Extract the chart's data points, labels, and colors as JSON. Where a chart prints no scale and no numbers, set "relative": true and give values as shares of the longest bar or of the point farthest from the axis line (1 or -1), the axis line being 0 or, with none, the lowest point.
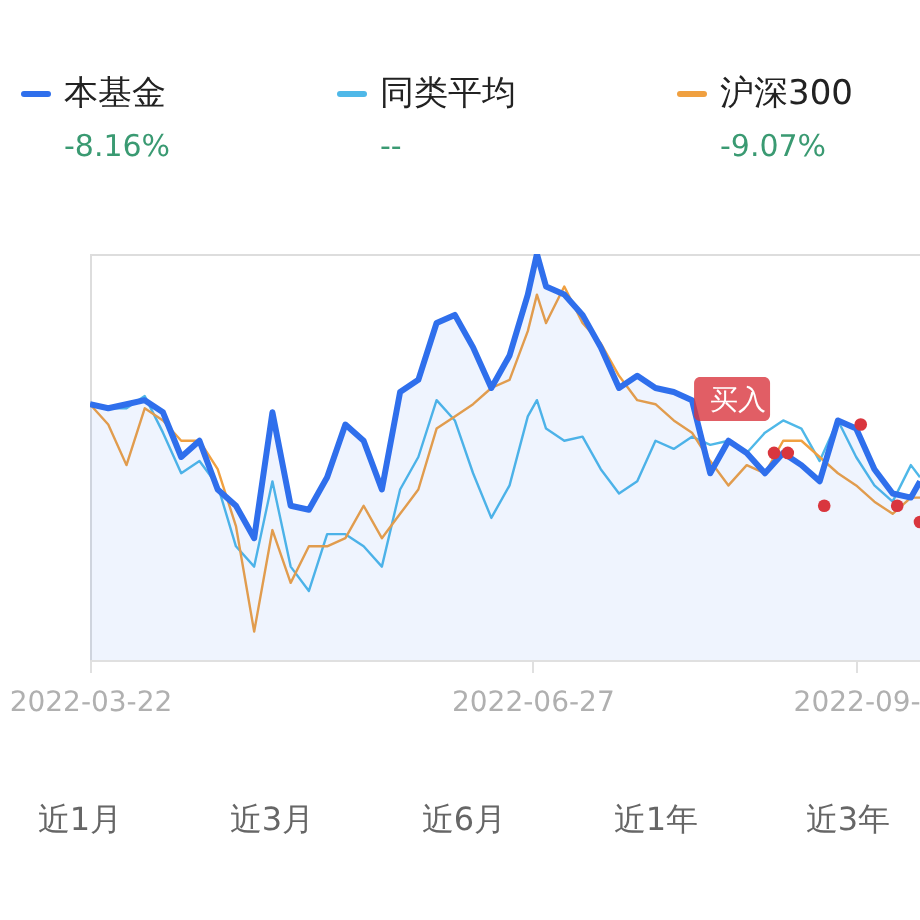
{
  "chart_data": {
    "type": "line",
    "relative": true,
    "legend": "top",
    "x": [
      "2022-03-22",
      "2022-03-26",
      "2022-03-30",
      "2022-04-03",
      "2022-04-07",
      "2022-04-11",
      "2022-04-15",
      "2022-04-19",
      "2022-04-23",
      "2022-04-27",
      "2022-05-01",
      "2022-05-05",
      "2022-05-09",
      "2022-05-13",
      "2022-05-17",
      "2022-05-21",
      "2022-05-25",
      "2022-05-29",
      "2022-06-02",
      "2022-06-06",
      "2022-06-10",
      "2022-06-14",
      "2022-06-18",
      "2022-06-22",
      "2022-06-26",
      "2022-06-28",
      "2022-06-30",
      "2022-07-04",
      "2022-07-08",
      "2022-07-12",
      "2022-07-16",
      "2022-07-20",
      "2022-07-24",
      "2022-07-28",
      "2022-08-01",
      "2022-08-05",
      "2022-08-09",
      "2022-08-13",
      "2022-08-17",
      "2022-08-21",
      "2022-08-25",
      "2022-08-29",
      "2022-09-02",
      "2022-09-06",
      "2022-09-10",
      "2022-09-14",
      "2022-09-18",
      "2022-09-20"
    ],
    "xlim": [
      "2022-03-22",
      "2022-09-20"
    ],
    "xticks": [
      {
        "value": "2022-03-22",
        "label": "2022-03-22"
      },
      {
        "value": "2022-06-27",
        "label": "2022-06-27"
      },
      {
        "value": "2022-09-06",
        "label": "2022-09-"
      }
    ],
    "series": [
      {
        "name": "同类平均",
        "color": "#4fb8e8",
        "values": [
          0.63,
          0.62,
          0.62,
          0.65,
          0.56,
          0.46,
          0.49,
          0.43,
          0.28,
          0.23,
          0.44,
          0.23,
          0.17,
          0.31,
          0.31,
          0.28,
          0.23,
          0.42,
          0.5,
          0.64,
          0.59,
          0.46,
          0.35,
          0.43,
          0.6,
          0.64,
          0.57,
          0.54,
          0.55,
          0.47,
          0.41,
          0.44,
          0.54,
          0.52,
          0.55,
          0.53,
          0.54,
          0.51,
          0.56,
          0.59,
          0.57,
          0.49,
          0.59,
          0.5,
          0.43,
          0.39,
          0.48,
          0.45
        ]
      },
      {
        "name": "沪深300",
        "color": "#f0a040",
        "values": [
          0.63,
          0.58,
          0.48,
          0.62,
          0.59,
          0.54,
          0.54,
          0.47,
          0.33,
          0.07,
          0.32,
          0.19,
          0.28,
          0.28,
          0.3,
          0.38,
          0.3,
          0.36,
          0.42,
          0.57,
          0.6,
          0.63,
          0.67,
          0.69,
          0.81,
          0.9,
          0.83,
          0.92,
          0.83,
          0.78,
          0.7,
          0.64,
          0.63,
          0.59,
          0.56,
          0.49,
          0.43,
          0.48,
          0.46,
          0.54,
          0.54,
          0.5,
          0.46,
          0.43,
          0.39,
          0.36,
          0.4,
          0.4
        ]
      },
      {
        "name": "本基金",
        "color": "#2f6fec",
        "type": "area",
        "values": [
          0.63,
          0.62,
          0.63,
          0.64,
          0.61,
          0.5,
          0.54,
          0.42,
          0.38,
          0.3,
          0.61,
          0.38,
          0.37,
          0.45,
          0.58,
          0.54,
          0.42,
          0.66,
          0.69,
          0.83,
          0.85,
          0.77,
          0.67,
          0.75,
          0.9,
          1.0,
          0.92,
          0.9,
          0.85,
          0.77,
          0.67,
          0.7,
          0.67,
          0.66,
          0.64,
          0.46,
          0.54,
          0.51,
          0.46,
          0.51,
          0.48,
          0.44,
          0.59,
          0.57,
          0.47,
          0.41,
          0.4,
          0.44
        ]
      },
      {
        "color": "#d9363e",
        "type": "scatter",
        "x": [
          "2022-08-19",
          "2022-08-22",
          "2022-08-30",
          "2022-09-07",
          "2022-09-15",
          "2022-09-20"
        ],
        "values": [
          0.51,
          0.51,
          0.38,
          0.58,
          0.38,
          0.34
        ]
      }
    ],
    "annotations": [
      "-8.16%",
      "--",
      "-9.07%",
      "近1月",
      "近3月",
      "近6月",
      "近1年",
      "近3年",
      {
        "text": "买入",
        "x": "2022-08-19",
        "y": 0.51
      }
    ]
  }
}
